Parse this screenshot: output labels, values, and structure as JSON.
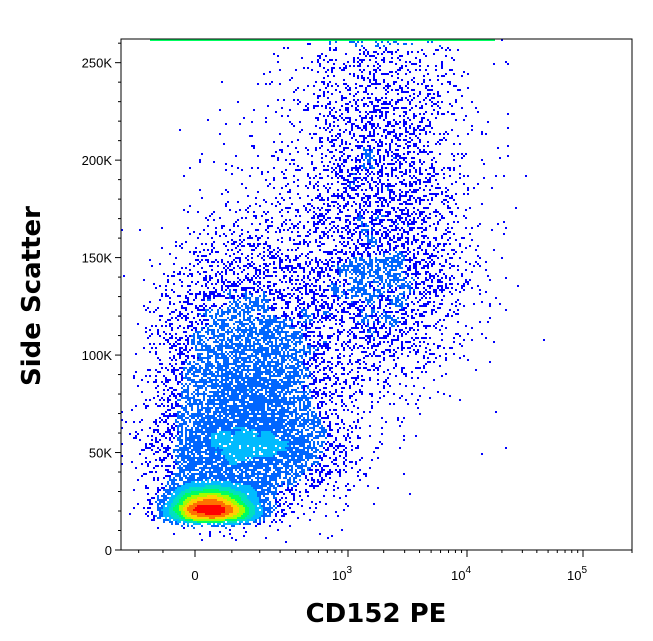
{
  "chart_data": {
    "type": "scatter",
    "subtype": "flow-cytometry-density-dot-plot",
    "title": "",
    "xlabel": "CD152 PE",
    "ylabel": "Side Scatter",
    "x_scale": "biexponential",
    "y_scale": "linear",
    "ylim": [
      0,
      262144
    ],
    "xlim": [
      -300,
      200000
    ],
    "grid": false,
    "legend": "none",
    "x_ticks": [
      {
        "value": 0,
        "base": "0",
        "exp": ""
      },
      {
        "value": 1000,
        "base": "10",
        "exp": "3"
      },
      {
        "value": 10000,
        "base": "10",
        "exp": "4"
      },
      {
        "value": 100000,
        "base": "10",
        "exp": "5"
      }
    ],
    "y_ticks": [
      {
        "value": 0,
        "label": "0"
      },
      {
        "value": 50000,
        "label": "50K"
      },
      {
        "value": 100000,
        "label": "100K"
      },
      {
        "value": 150000,
        "label": "150K"
      },
      {
        "value": 200000,
        "label": "200K"
      },
      {
        "value": 250000,
        "label": "250K"
      }
    ],
    "density_colors": [
      "#0000ff",
      "#0066ff",
      "#00bbff",
      "#00e0c0",
      "#00ff60",
      "#a0ff00",
      "#ffd000",
      "#ff7000",
      "#ff0000"
    ],
    "populations": [
      {
        "name": "",
        "x_center": 40,
        "y_center": 20000,
        "x_spread": 60,
        "y_spread": 6000,
        "fraction": 0.42
      },
      {
        "name": "",
        "x_center": 150,
        "y_center": 60000,
        "x_spread": 220,
        "y_spread": 45000,
        "fraction": 0.38
      },
      {
        "name": "",
        "x_center": 1800,
        "y_center": 150000,
        "x_spread": 2500,
        "y_spread": 80000,
        "fraction": 0.2
      }
    ]
  }
}
